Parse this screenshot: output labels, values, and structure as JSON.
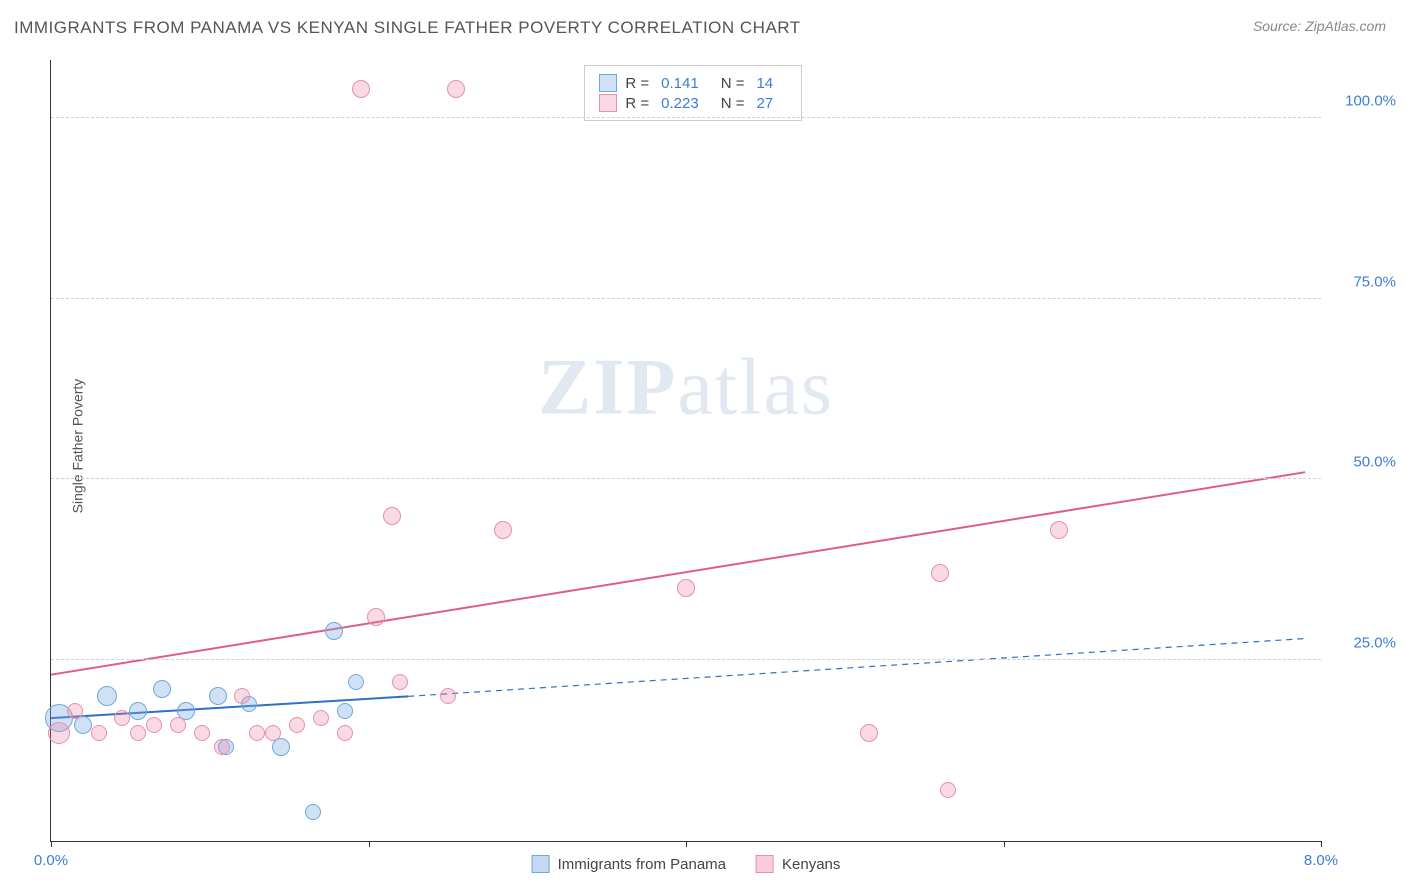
{
  "title": "IMMIGRANTS FROM PANAMA VS KENYAN SINGLE FATHER POVERTY CORRELATION CHART",
  "source": "Source: ZipAtlas.com",
  "ylabel": "Single Father Poverty",
  "watermark_bold": "ZIP",
  "watermark_rest": "atlas",
  "chart": {
    "type": "scatter",
    "background_color": "#ffffff",
    "grid_color": "#d0d0d0",
    "xlim": [
      0,
      8
    ],
    "ylim": [
      0,
      108
    ],
    "xtick_positions": [
      0,
      2,
      4,
      6,
      8
    ],
    "xtick_labels_shown": {
      "0": "0.0%",
      "8": "8.0%"
    },
    "ytick_positions": [
      25,
      50,
      75,
      100
    ],
    "ytick_labels": {
      "25": "25.0%",
      "50": "50.0%",
      "75": "75.0%",
      "100": "100.0%"
    },
    "series": [
      {
        "name": "Immigrants from Panama",
        "fill_color": "rgba(120,170,225,0.35)",
        "stroke_color": "#6fa9da",
        "R": "0.141",
        "N": "14",
        "trend": {
          "x1": 0,
          "y1": 17,
          "x2": 2.25,
          "y2": 20,
          "dash_to_x": 7.9,
          "dash_to_y": 28,
          "color": "#2f6fc4",
          "width": 2
        },
        "points": [
          {
            "x": 0.05,
            "y": 17,
            "r": 14
          },
          {
            "x": 0.35,
            "y": 20,
            "r": 10
          },
          {
            "x": 0.55,
            "y": 18,
            "r": 9
          },
          {
            "x": 0.7,
            "y": 21,
            "r": 9
          },
          {
            "x": 0.85,
            "y": 18,
            "r": 9
          },
          {
            "x": 1.05,
            "y": 20,
            "r": 9
          },
          {
            "x": 1.1,
            "y": 13,
            "r": 8
          },
          {
            "x": 1.25,
            "y": 19,
            "r": 8
          },
          {
            "x": 1.45,
            "y": 13,
            "r": 9
          },
          {
            "x": 1.65,
            "y": 4,
            "r": 8
          },
          {
            "x": 1.78,
            "y": 29,
            "r": 9
          },
          {
            "x": 1.85,
            "y": 18,
            "r": 8
          },
          {
            "x": 1.92,
            "y": 22,
            "r": 8
          },
          {
            "x": 0.2,
            "y": 16,
            "r": 9
          }
        ]
      },
      {
        "name": "Kenyans",
        "fill_color": "rgba(235,130,165,0.30)",
        "stroke_color": "#e590ad",
        "R": "0.223",
        "N": "27",
        "trend": {
          "x1": 0,
          "y1": 23,
          "x2": 7.9,
          "y2": 51,
          "color": "#e05a8a",
          "width": 2
        },
        "points": [
          {
            "x": 0.05,
            "y": 15,
            "r": 11
          },
          {
            "x": 0.15,
            "y": 18,
            "r": 8
          },
          {
            "x": 0.3,
            "y": 15,
            "r": 8
          },
          {
            "x": 0.45,
            "y": 17,
            "r": 8
          },
          {
            "x": 0.55,
            "y": 15,
            "r": 8
          },
          {
            "x": 0.65,
            "y": 16,
            "r": 8
          },
          {
            "x": 0.8,
            "y": 16,
            "r": 8
          },
          {
            "x": 0.95,
            "y": 15,
            "r": 8
          },
          {
            "x": 1.08,
            "y": 13,
            "r": 8
          },
          {
            "x": 1.2,
            "y": 20,
            "r": 8
          },
          {
            "x": 1.3,
            "y": 15,
            "r": 8
          },
          {
            "x": 1.4,
            "y": 15,
            "r": 8
          },
          {
            "x": 1.55,
            "y": 16,
            "r": 8
          },
          {
            "x": 1.7,
            "y": 17,
            "r": 8
          },
          {
            "x": 1.85,
            "y": 15,
            "r": 8
          },
          {
            "x": 1.95,
            "y": 104,
            "r": 9
          },
          {
            "x": 2.05,
            "y": 31,
            "r": 9
          },
          {
            "x": 2.15,
            "y": 45,
            "r": 9
          },
          {
            "x": 2.2,
            "y": 22,
            "r": 8
          },
          {
            "x": 2.5,
            "y": 20,
            "r": 8
          },
          {
            "x": 2.55,
            "y": 104,
            "r": 9
          },
          {
            "x": 2.85,
            "y": 43,
            "r": 9
          },
          {
            "x": 4.0,
            "y": 35,
            "r": 9
          },
          {
            "x": 5.15,
            "y": 15,
            "r": 9
          },
          {
            "x": 5.6,
            "y": 37,
            "r": 9
          },
          {
            "x": 5.65,
            "y": 7,
            "r": 8
          },
          {
            "x": 6.35,
            "y": 43,
            "r": 9
          }
        ]
      }
    ],
    "legend_bottom": [
      {
        "label": "Immigrants from Panama",
        "fill": "rgba(120,170,225,0.45)",
        "stroke": "#6fa9da"
      },
      {
        "label": "Kenyans",
        "fill": "rgba(235,130,165,0.40)",
        "stroke": "#e590ad"
      }
    ]
  }
}
